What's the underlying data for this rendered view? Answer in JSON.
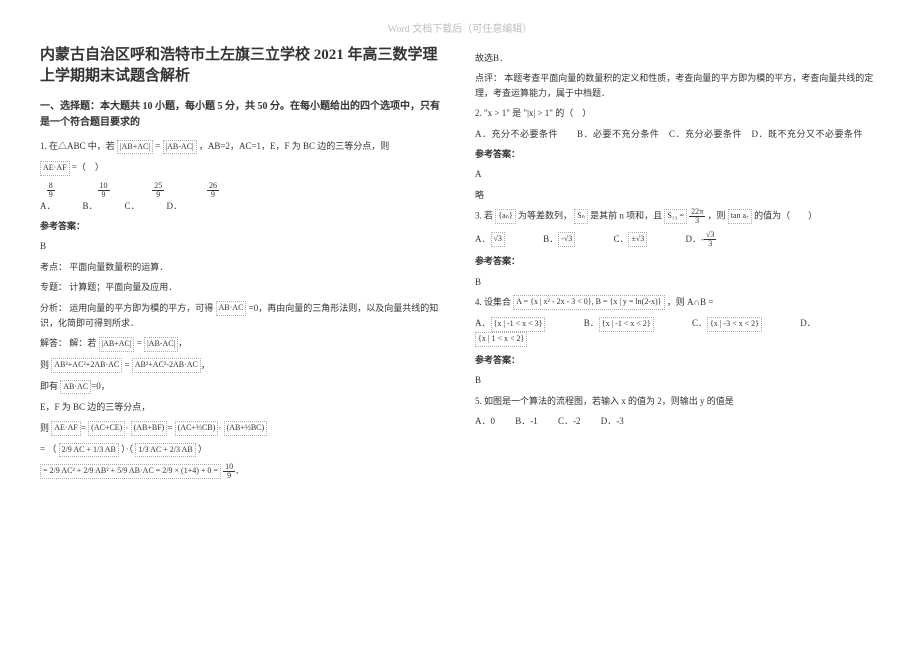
{
  "watermark": "Word 文档下载后（可任意编辑）",
  "title": "内蒙古自治区呼和浩特市土左旗三立学校 2021 年高三数学理上学期期末试题含解析",
  "section1_title": "一、选择题：本大题共 10 小题，每小题 5 分，共 50 分。在每小题给出的四个选项中，只有是一个符合题目要求的",
  "q1": {
    "stem_prefix": "1. 在△ABC 中，若",
    "fbox1": "|AB+AC|",
    "eq": "=",
    "fbox2": "|AB-AC|",
    "stem_suffix": "，AB=2，AC=1，E，F 为 BC 边的三等分点，则",
    "fbox3": "AE·AF",
    "eq2": "=（　）",
    "opt_nums": {
      "a": "8",
      "b": "10",
      "c": "25",
      "d": "26",
      "den": "9"
    },
    "opt_labels": {
      "a": "A．",
      "b": "B．",
      "c": "C．",
      "d": "D．"
    },
    "answer_label": "参考答案：",
    "answer": "B",
    "kaodian_label": "考点：",
    "kaodian": "平面向量数量积的运算．",
    "zhuanti_label": "专题：",
    "zhuanti": "计算题；平面向量及应用．",
    "fenxi_label": "分析：",
    "fenxi": "运用向量的平方即为模的平方，可得",
    "fbox_dot": "AB·AC",
    "fenxi_suffix": "=0，再由向量的三角形法则，以及向量共线的知识，化简即可得到所求．",
    "jieda_label": "解答：",
    "jieda": "解：若",
    "jieda_f1": "|AB+AC|",
    "jieda_f2": "|AB-AC|",
    "line_sq": "则",
    "sq1": "AB²+AC²+2AB·AC",
    "sq2": "AB²+AC²-2AB·AC",
    "jiyou": "即有",
    "ef_line": "E，F 为 BC 边的三等分点，",
    "ze_line": "则",
    "aeaf": "AE·AF",
    "accb": "(AC+CE)",
    "abbf": "(AB+BF)",
    "ac13": "(AC+⅓CB)",
    "ab13": "(AB+⅓BC)",
    "final_prefix": "=",
    "final_calc1": "2/9 AC + 1/3 AB",
    "final_calc2": "1/3 AC + 2/3 AB",
    "last_line": "= 2/9 AC² + 2/9 AB² + 5/9 AB·AC = 2/9 × (1+4) + 0 =",
    "last_val": "10/9"
  },
  "col2": {
    "guxuan": "故选B．",
    "dianping_label": "点评：",
    "dianping": "本题考查平面向量的数量积的定义和性质，考查向量的平方即为模的平方，考查向量共线的定理，考查运算能力，属于中档题．",
    "q2_stem": "2. \"x > 1\" 是 \"|x| > 1\" 的（　）",
    "q2_opts": "A．充分不必要条件　　B．必要不充分条件　C．充分必要条件　D．既不充分又不必要条件",
    "q2_answer_label": "参考答案：",
    "q2_answer": "A",
    "q2_lue": "略",
    "q3_prefix": "3. 若",
    "q3_an": "{aₙ}",
    "q3_mid": "为等差数列，",
    "q3_sn": "Sₙ",
    "q3_mid2": "是其前 n 项和，且",
    "q3_s13": "S₁₃ =",
    "q3_frac_num": "22π",
    "q3_frac_den": "3",
    "q3_suffix": "，则",
    "q3_tan": "tan a₇",
    "q3_suffix2": "的值为（　　）",
    "q3_a": "√3",
    "q3_b": "-√3",
    "q3_c": "±√3",
    "q3_d_num": "√3",
    "q3_d_den": "3",
    "q3_answer_label": "参考答案：",
    "q3_answer": "B",
    "q4_stem": "4. 设集合",
    "q4_A": "A = {x | x² - 2x - 3 < 0}, B = {x | y = ln(2-x)}",
    "q4_suffix": "，则 A∩B =",
    "q4_a": "{x | -1 < x < 3}",
    "q4_b": "{x | -1 < x < 2}",
    "q4_c": "{x | -3 < x < 2}",
    "q4_d": "{x | 1 < x < 2}",
    "q4_answer_label": "参考答案：",
    "q4_answer": "B",
    "q5_stem": "5. 如图是一个算法的流程图，若输入 x 的值为 2，则输出 y 的值是",
    "q5_a": "A．0",
    "q5_b": "B．-1",
    "q5_c": "C．-2",
    "q5_d": "D．-3"
  }
}
